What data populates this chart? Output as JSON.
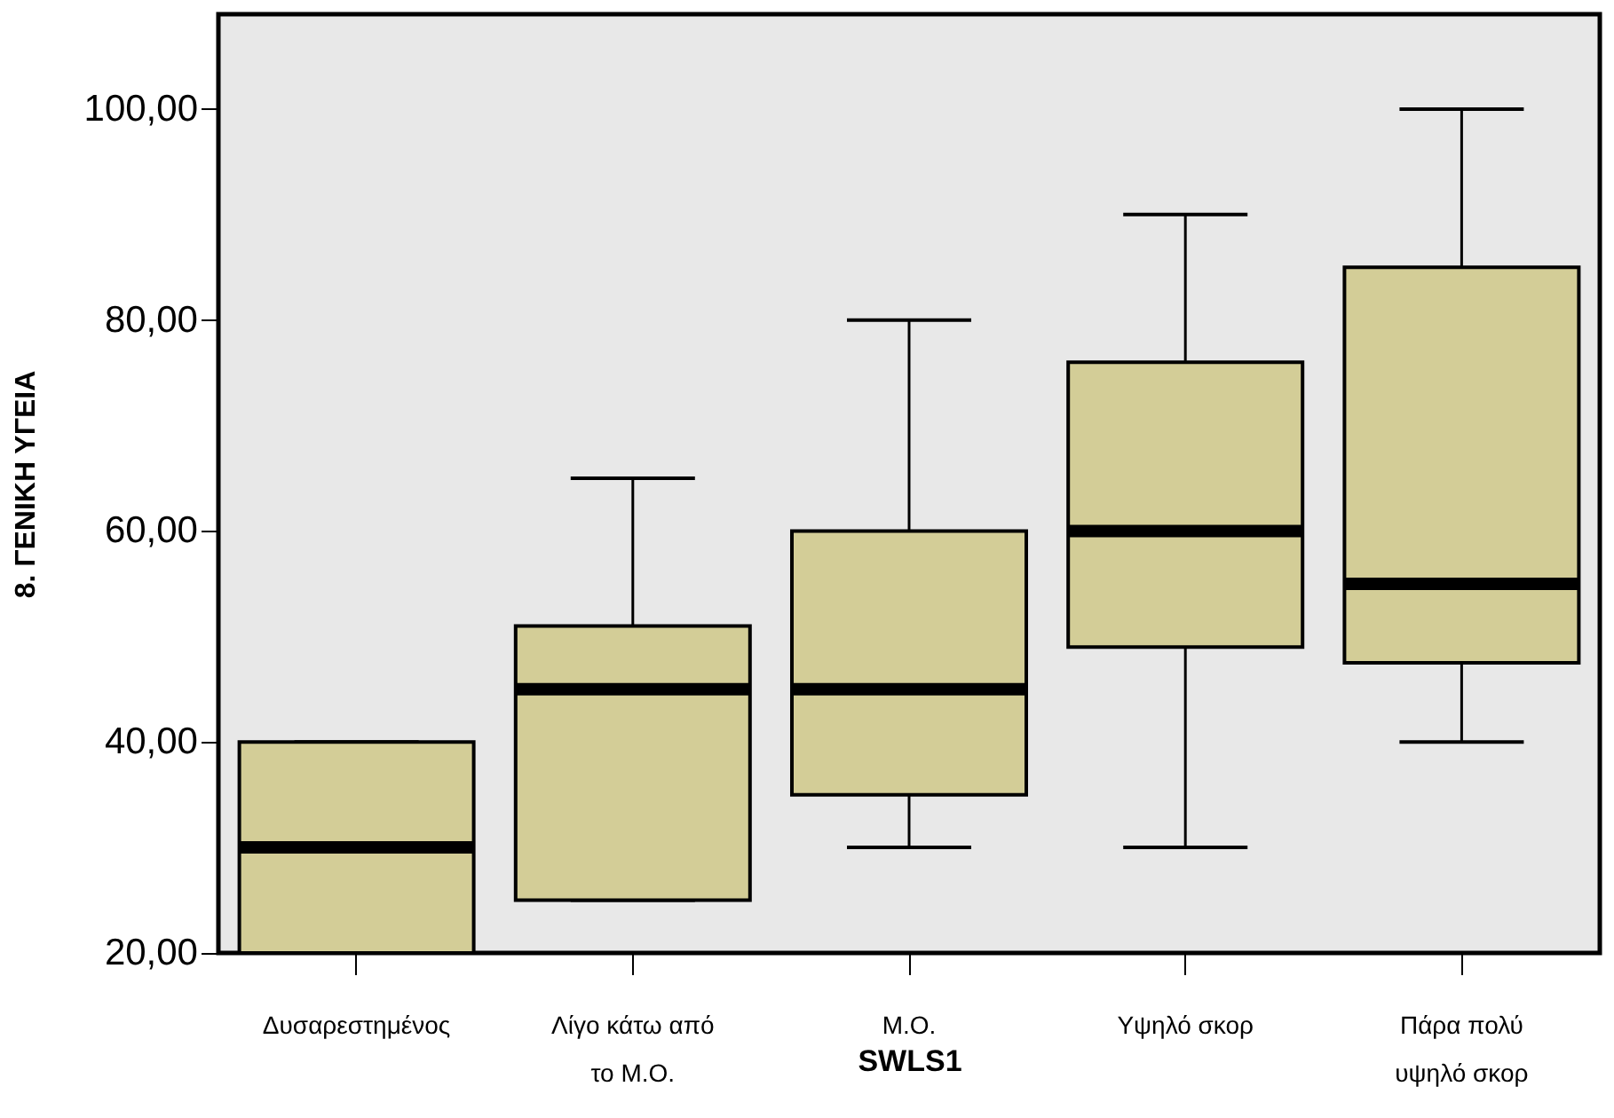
{
  "chart_data": {
    "type": "box",
    "xlabel": "SWLS1",
    "ylabel": "8. ΓΕΝΙΚΗ ΥΓΕΙΑ",
    "categories": [
      "Δυσαρεστημένος",
      "Λίγο κάτω από\nτο Μ.Ο.",
      "Μ.Ο.",
      "Υψηλό σκορ",
      "Πάρα πολύ\nυψηλό σκορ"
    ],
    "boxes": [
      {
        "low": 20,
        "q1": 20,
        "median": 30,
        "q3": 40,
        "high": 40
      },
      {
        "low": 25,
        "q1": 25,
        "median": 45,
        "q3": 51,
        "high": 65
      },
      {
        "low": 30,
        "q1": 35,
        "median": 45,
        "q3": 60,
        "high": 80
      },
      {
        "low": 30,
        "q1": 49,
        "median": 60,
        "q3": 76,
        "high": 90
      },
      {
        "low": 40,
        "q1": 47.5,
        "median": 55,
        "q3": 85,
        "high": 100
      }
    ],
    "color": "#d3cd97",
    "ylim": [
      20,
      109
    ],
    "yticks": [
      {
        "value": 20,
        "label": "20,00"
      },
      {
        "value": 40,
        "label": "40,00"
      },
      {
        "value": 60,
        "label": "60,00"
      },
      {
        "value": 80,
        "label": "80,00"
      },
      {
        "value": 100,
        "label": "100,00"
      }
    ],
    "grid": false
  }
}
